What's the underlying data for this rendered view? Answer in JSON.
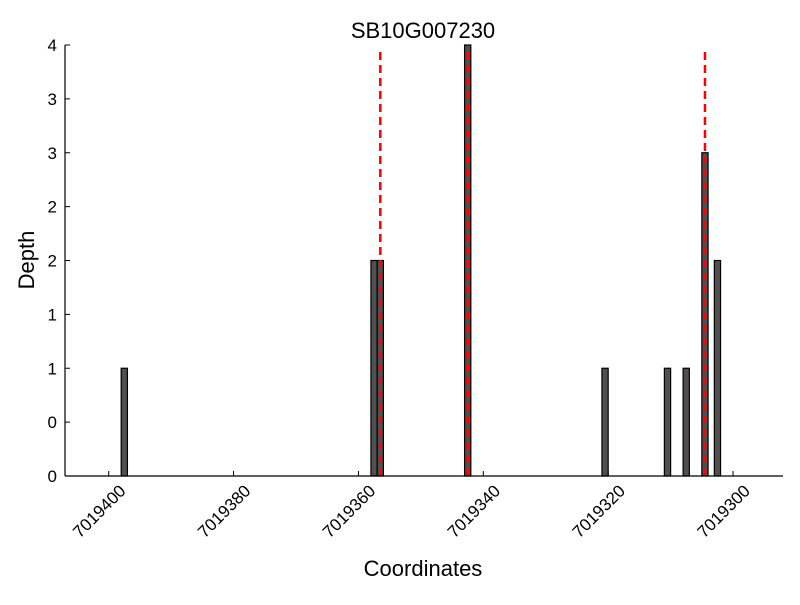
{
  "chart_data": {
    "type": "bar",
    "title": "SB10G007230",
    "xlabel": "Coordinates",
    "ylabel": "Depth",
    "xlim": [
      7019407,
      7019292
    ],
    "x_reversed": true,
    "ylim": [
      0,
      4
    ],
    "grid": false,
    "bar_color": "#505050",
    "bar_edge_color": "#000000",
    "marker_color": "#ff0000",
    "xticks": [
      7019400,
      7019380,
      7019360,
      7019340,
      7019320,
      7019300
    ],
    "xtick_labels": [
      "7019400",
      "7019380",
      "7019360",
      "7019340",
      "7019320",
      "7019300"
    ],
    "yticks": [
      0,
      0.5,
      1,
      1.5,
      2,
      2.5,
      3,
      3.5,
      4
    ],
    "ytick_labels": [
      "0",
      "0",
      "1",
      "1",
      "2",
      "2",
      "3",
      "3",
      "4"
    ],
    "bars": [
      {
        "x": 7019398,
        "depth": 1
      },
      {
        "x": 7019358,
        "depth": 2
      },
      {
        "x": 7019357,
        "depth": 2
      },
      {
        "x": 7019343,
        "depth": 4
      },
      {
        "x": 7019321,
        "depth": 1
      },
      {
        "x": 7019311,
        "depth": 1
      },
      {
        "x": 7019308,
        "depth": 1
      },
      {
        "x": 7019305,
        "depth": 3
      },
      {
        "x": 7019303,
        "depth": 2
      }
    ],
    "vertical_dashed_lines": [
      7019356.5,
      7019342.5,
      7019304.5
    ]
  }
}
